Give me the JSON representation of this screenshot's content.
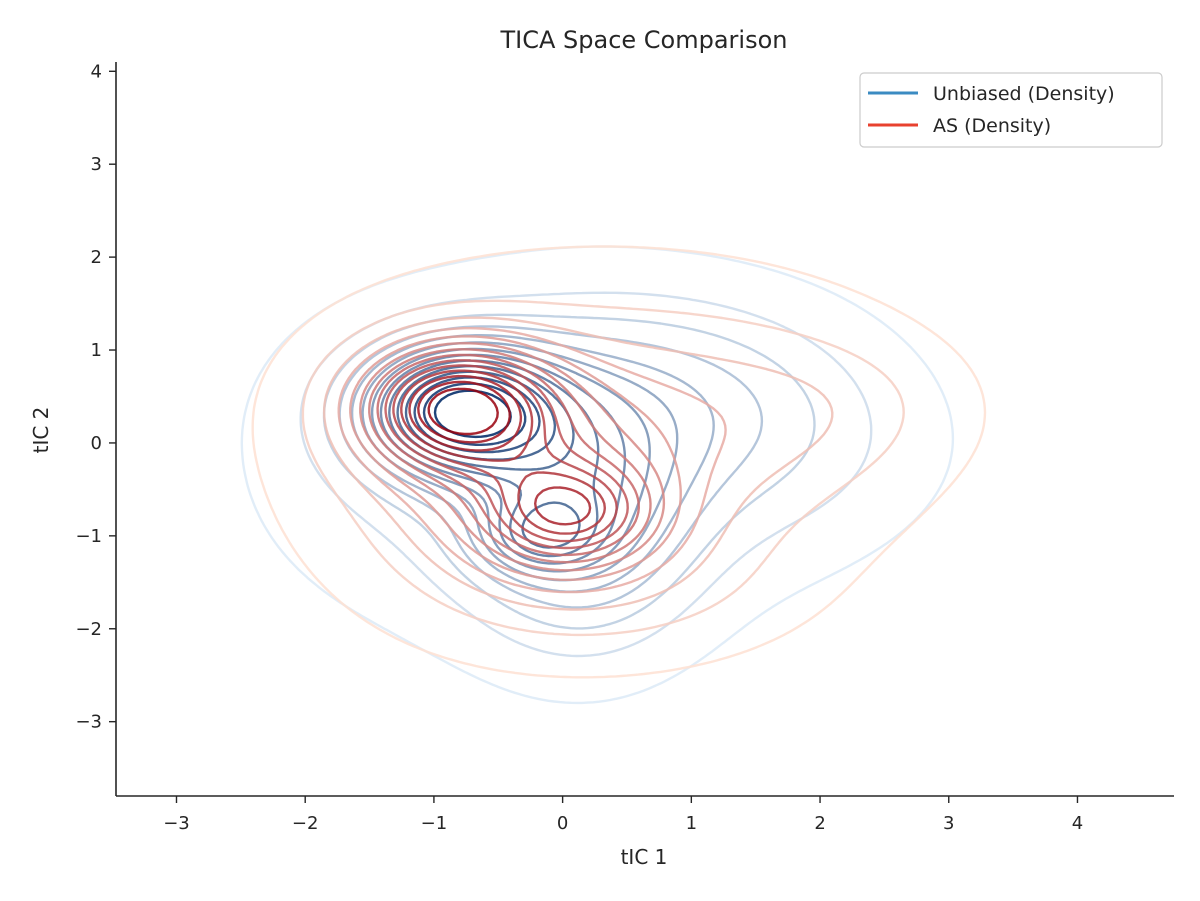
{
  "chart_data": {
    "type": "contour",
    "title": "TICA Space Comparison",
    "xlabel": "tIC 1",
    "ylabel": "tIC 2",
    "xlim": [
      -3.47,
      4.75
    ],
    "ylim": [
      -3.8,
      4.1
    ],
    "xticks": [
      -3,
      -2,
      -1,
      0,
      1,
      2,
      3,
      4
    ],
    "yticks": [
      -3,
      -2,
      -1,
      0,
      1,
      2,
      3,
      4
    ],
    "xtick_labels": [
      "−3",
      "−2",
      "−1",
      "0",
      "1",
      "2",
      "3",
      "4"
    ],
    "ytick_labels": [
      "−3",
      "−2",
      "−1",
      "0",
      "1",
      "2",
      "3",
      "4"
    ],
    "grid": false,
    "legend_position": "top-right",
    "series": [
      {
        "name": "Unbiased (Density)",
        "color": "#3b8bc2",
        "colormap_light": "#deebf7",
        "colormap_dark": "#08306b",
        "levels": 14,
        "components": [
          {
            "cx": -0.8,
            "cy": 0.35,
            "sx": 0.52,
            "sy": 0.48,
            "w": 1.0
          },
          {
            "cx": -0.2,
            "cy": -1.0,
            "sx": 0.32,
            "sy": 0.28,
            "w": 0.34
          },
          {
            "cx": 0.15,
            "cy": -0.7,
            "sx": 0.55,
            "sy": 0.9,
            "w": 0.42
          },
          {
            "cx": 0.9,
            "cy": 0.6,
            "sx": 0.9,
            "sy": 0.7,
            "w": 0.18
          },
          {
            "cx": 1.7,
            "cy": -0.1,
            "sx": 0.85,
            "sy": 0.75,
            "w": 0.1
          },
          {
            "cx": -0.2,
            "cy": -0.2,
            "sx": 1.25,
            "sy": 1.15,
            "w": 0.22
          }
        ]
      },
      {
        "name": "AS (Density)",
        "color": "#e8412f",
        "colormap_light": "#fee0d2",
        "colormap_dark": "#99000d",
        "levels": 14,
        "components": [
          {
            "cx": -0.85,
            "cy": 0.4,
            "sx": 0.5,
            "sy": 0.45,
            "w": 1.0
          },
          {
            "cx": 0.05,
            "cy": -0.75,
            "sx": 0.45,
            "sy": 0.38,
            "w": 0.6
          },
          {
            "cx": -0.3,
            "cy": -0.3,
            "sx": 0.75,
            "sy": 0.8,
            "w": 0.35
          },
          {
            "cx": 1.3,
            "cy": 0.25,
            "sx": 1.0,
            "sy": 0.85,
            "w": 0.16
          },
          {
            "cx": 2.2,
            "cy": 0.4,
            "sx": 0.65,
            "sy": 0.5,
            "w": 0.06
          },
          {
            "cx": 0.4,
            "cy": -1.5,
            "sx": 0.9,
            "sy": 0.55,
            "w": 0.12
          },
          {
            "cx": 0.0,
            "cy": 0.0,
            "sx": 1.4,
            "sy": 1.25,
            "w": 0.15
          }
        ]
      }
    ]
  }
}
